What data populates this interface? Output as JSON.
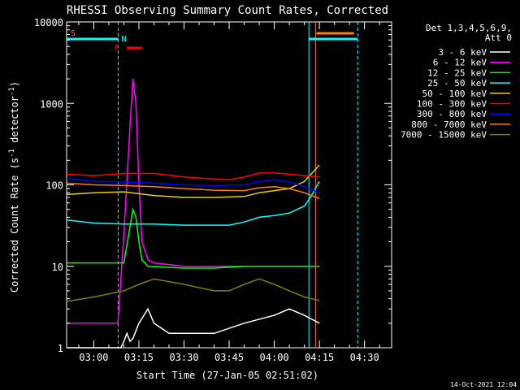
{
  "chart_data": {
    "type": "line",
    "title": "RHESSI Observing Summary Count Rates, Corrected",
    "ylabel": "Corrected Count Rate (s",
    "ylabel_sup": "-1",
    "ylabel_mid": " detector",
    "ylabel_end": ")",
    "xlabel": "Start Time (27-Jan-05 02:51:02)",
    "date_stamp": "14-Oct-2021 12:04",
    "y_scale": "log",
    "ylim": [
      1,
      10000
    ],
    "xlim_minutes": [
      -9.03,
      99.0
    ],
    "x_tick_labels": [
      "03:00",
      "03:15",
      "03:30",
      "03:45",
      "04:00",
      "04:15",
      "04:30"
    ],
    "x_tick_minutes": [
      0,
      15,
      30,
      45,
      60,
      75,
      90
    ],
    "y_tick_labels": [
      "1",
      "10",
      "100",
      "1000",
      "10000"
    ],
    "y_tick_values": [
      1,
      10,
      100,
      1000,
      10000
    ],
    "legend": {
      "header1": "Det 1,3,4,5,6,9,",
      "header2": "Att 0",
      "placement": "right"
    },
    "series": [
      {
        "name": "3 - 6 keV",
        "color": "#ffffff",
        "x": [
          -9,
          9,
          10,
          11,
          12,
          13,
          15,
          18,
          20,
          25,
          30,
          40,
          50,
          60,
          65,
          70,
          75
        ],
        "y": [
          1,
          1,
          1.2,
          1.5,
          1.2,
          1.3,
          2,
          3,
          2,
          1.5,
          1.5,
          1.5,
          2,
          2.5,
          3,
          2.5,
          2
        ]
      },
      {
        "name": "6 - 12 keV",
        "color": "#ff00ff",
        "x": [
          -9,
          8,
          10,
          12,
          13,
          14,
          15,
          16,
          18,
          20,
          30,
          40,
          50,
          60,
          70,
          75
        ],
        "y": [
          2,
          2,
          25,
          500,
          2000,
          1000,
          100,
          20,
          12,
          11,
          10,
          10,
          10,
          10,
          10,
          10
        ]
      },
      {
        "name": "12 - 25 keV",
        "color": "#00ff00",
        "x": [
          -9,
          10,
          12,
          13,
          14,
          15,
          16,
          18,
          30,
          40,
          50,
          60,
          70,
          75
        ],
        "y": [
          11,
          11,
          30,
          50,
          40,
          20,
          12,
          10,
          9.5,
          9.5,
          10,
          10,
          10,
          10
        ]
      },
      {
        "name": "25 - 50 keV",
        "color": "#00ffff",
        "x": [
          -9,
          0,
          10,
          20,
          30,
          40,
          45,
          50,
          55,
          60,
          65,
          70,
          72,
          75
        ],
        "y": [
          37,
          34,
          33,
          33,
          32,
          32,
          32,
          35,
          40,
          42,
          45,
          55,
          70,
          110
        ]
      },
      {
        "name": "50 - 100 keV",
        "color": "#e6d000",
        "x": [
          -9,
          0,
          10,
          20,
          30,
          40,
          50,
          55,
          60,
          65,
          70,
          75
        ],
        "y": [
          76,
          80,
          82,
          74,
          70,
          70,
          72,
          80,
          85,
          90,
          110,
          175
        ]
      },
      {
        "name": "100 - 300 keV",
        "color": "#ff0000",
        "x": [
          -9,
          0,
          10,
          20,
          30,
          40,
          45,
          50,
          55,
          60,
          65,
          70,
          75
        ],
        "y": [
          135,
          130,
          138,
          138,
          125,
          118,
          115,
          125,
          140,
          140,
          135,
          130,
          125
        ]
      },
      {
        "name": "300 - 800 keV",
        "color": "#0000ff",
        "x": [
          -9,
          0,
          10,
          20,
          30,
          40,
          50,
          55,
          60,
          65,
          70,
          75
        ],
        "y": [
          120,
          110,
          108,
          105,
          100,
          98,
          100,
          110,
          115,
          108,
          95,
          80
        ]
      },
      {
        "name": "800 - 7000 keV",
        "color": "#ff8000",
        "x": [
          -9,
          0,
          10,
          20,
          30,
          40,
          50,
          55,
          60,
          65,
          70,
          75
        ],
        "y": [
          105,
          100,
          98,
          95,
          90,
          86,
          85,
          92,
          95,
          90,
          80,
          68
        ]
      },
      {
        "name": "7000 - 15000 keV",
        "color": "#808000",
        "x": [
          -9,
          0,
          10,
          15,
          20,
          30,
          40,
          45,
          50,
          55,
          60,
          65,
          70,
          75
        ],
        "y": [
          3.7,
          4.2,
          5,
          6,
          7,
          6,
          5,
          5,
          6,
          7,
          6,
          5,
          4.2,
          3.8
        ]
      }
    ],
    "annotations": {
      "s_label": "S",
      "n_label": "N",
      "f_label": "F"
    }
  }
}
